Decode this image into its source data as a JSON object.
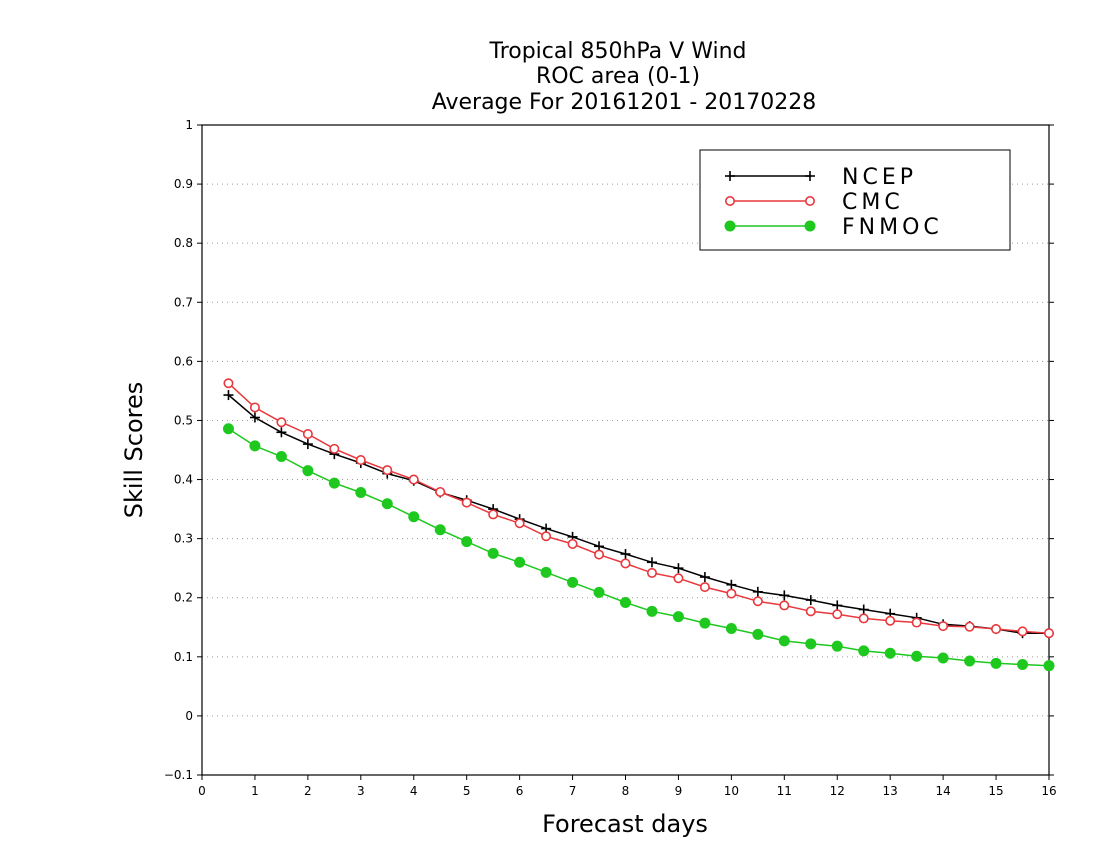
{
  "chart_data": {
    "type": "line",
    "title_lines": [
      "Tropical 850hPa V Wind",
      "ROC area (0-1)",
      "Average For 20161201 - 20170228"
    ],
    "xlabel": "Forecast days",
    "ylabel": "Skill Scores",
    "xlim": [
      0,
      16
    ],
    "ylim": [
      -0.1,
      1
    ],
    "x_ticks": [
      0,
      1,
      2,
      3,
      4,
      5,
      6,
      7,
      8,
      9,
      10,
      11,
      12,
      13,
      14,
      15,
      16
    ],
    "x_tick_labels": [
      "0",
      "1",
      "2",
      "3",
      "4",
      "5",
      "6",
      "7",
      "8",
      "9",
      "10",
      "11",
      "12",
      "13",
      "14",
      "15",
      "16"
    ],
    "y_ticks": [
      -0.1,
      0,
      0.1,
      0.2,
      0.3,
      0.4,
      0.5,
      0.6,
      0.7,
      0.8,
      0.9,
      1
    ],
    "y_tick_labels": [
      "−0.1",
      "0",
      "0.1",
      "0.2",
      "0.3",
      "0.4",
      "0.5",
      "0.6",
      "0.7",
      "0.8",
      "0.9",
      "1"
    ],
    "grid": "horizontal dotted",
    "legend_position": "top-right",
    "x": [
      0.5,
      1,
      1.5,
      2,
      2.5,
      3,
      3.5,
      4,
      4.5,
      5,
      5.5,
      6,
      6.5,
      7,
      7.5,
      8,
      8.5,
      9,
      9.5,
      10,
      10.5,
      11,
      11.5,
      12,
      12.5,
      13,
      13.5,
      14,
      14.5,
      15,
      15.5,
      16
    ],
    "series": [
      {
        "name": "NCEP",
        "color": "#000000",
        "marker": "plus",
        "values": [
          0.543,
          0.505,
          0.48,
          0.46,
          0.443,
          0.428,
          0.41,
          0.398,
          0.378,
          0.365,
          0.35,
          0.333,
          0.317,
          0.303,
          0.287,
          0.274,
          0.26,
          0.25,
          0.235,
          0.222,
          0.21,
          0.204,
          0.196,
          0.187,
          0.18,
          0.173,
          0.166,
          0.155,
          0.152,
          0.147,
          0.14,
          0.14
        ]
      },
      {
        "name": "CMC",
        "color": "#e8383d",
        "marker": "open-circle",
        "values": [
          0.563,
          0.522,
          0.497,
          0.477,
          0.452,
          0.433,
          0.416,
          0.4,
          0.379,
          0.361,
          0.341,
          0.326,
          0.304,
          0.291,
          0.273,
          0.258,
          0.242,
          0.233,
          0.218,
          0.207,
          0.194,
          0.187,
          0.177,
          0.172,
          0.165,
          0.161,
          0.158,
          0.152,
          0.151,
          0.147,
          0.143,
          0.14
        ]
      },
      {
        "name": "FNMOC",
        "color": "#1ec81e",
        "marker": "filled-circle",
        "values": [
          0.486,
          0.457,
          0.439,
          0.415,
          0.394,
          0.378,
          0.359,
          0.337,
          0.315,
          0.295,
          0.275,
          0.26,
          0.243,
          0.226,
          0.209,
          0.192,
          0.177,
          0.168,
          0.157,
          0.148,
          0.138,
          0.127,
          0.122,
          0.118,
          0.11,
          0.106,
          0.101,
          0.098,
          0.093,
          0.089,
          0.087,
          0.085
        ]
      }
    ]
  }
}
